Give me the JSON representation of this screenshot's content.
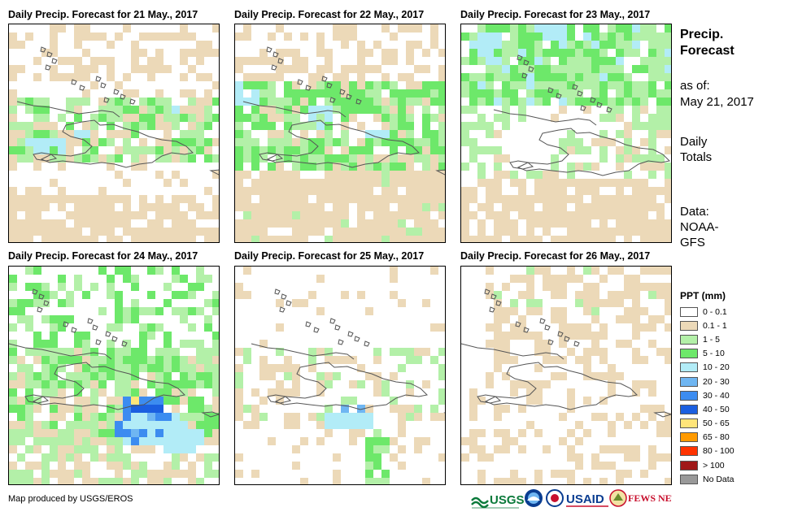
{
  "panels": [
    {
      "title": "Daily Precip. Forecast for 21 May., 2017",
      "pattern": "day21"
    },
    {
      "title": "Daily Precip. Forecast for 22 May., 2017",
      "pattern": "day22"
    },
    {
      "title": "Daily Precip. Forecast for 23 May., 2017",
      "pattern": "day23"
    },
    {
      "title": "Daily Precip. Forecast for 24 May., 2017",
      "pattern": "day24"
    },
    {
      "title": "Daily Precip. Forecast for 25 May., 2017",
      "pattern": "day25"
    },
    {
      "title": "Daily Precip. Forecast for 26 May., 2017",
      "pattern": "day26"
    }
  ],
  "sidebar": {
    "title_line1": "Precip.",
    "title_line2": "Forecast",
    "asof_line1": "as of:",
    "asof_line2": "May 21, 2017",
    "totals_line1": "Daily",
    "totals_line2": "Totals",
    "data_line1": "Data:",
    "data_line2": "NOAA-",
    "data_line3": "GFS"
  },
  "legend": {
    "title": "PPT (mm)",
    "items": [
      {
        "label": "0 - 0.1",
        "color": "#ffffff"
      },
      {
        "label": "0.1 - 1",
        "color": "#ecd9b8"
      },
      {
        "label": "1 - 5",
        "color": "#b3f0a8"
      },
      {
        "label": "5 - 10",
        "color": "#6de86a"
      },
      {
        "label": "10 - 20",
        "color": "#b2ecf7"
      },
      {
        "label": "20 - 30",
        "color": "#6fb6f2"
      },
      {
        "label": "30 - 40",
        "color": "#3c8cf0"
      },
      {
        "label": "40 - 50",
        "color": "#1b5fe0"
      },
      {
        "label": "50 - 65",
        "color": "#ffe57a"
      },
      {
        "label": "65 - 80",
        "color": "#ff9a00"
      },
      {
        "label": "80 - 100",
        "color": "#ff3300"
      },
      {
        "label": "> 100",
        "color": "#a01818"
      },
      {
        "label": "No Data",
        "color": "#999999"
      }
    ]
  },
  "footer": {
    "credit": "Map produced by USGS/EROS",
    "logo_usgs": "USGS",
    "logo_usaid": "USAID",
    "logo_fewsnet": "FEWS NET"
  }
}
